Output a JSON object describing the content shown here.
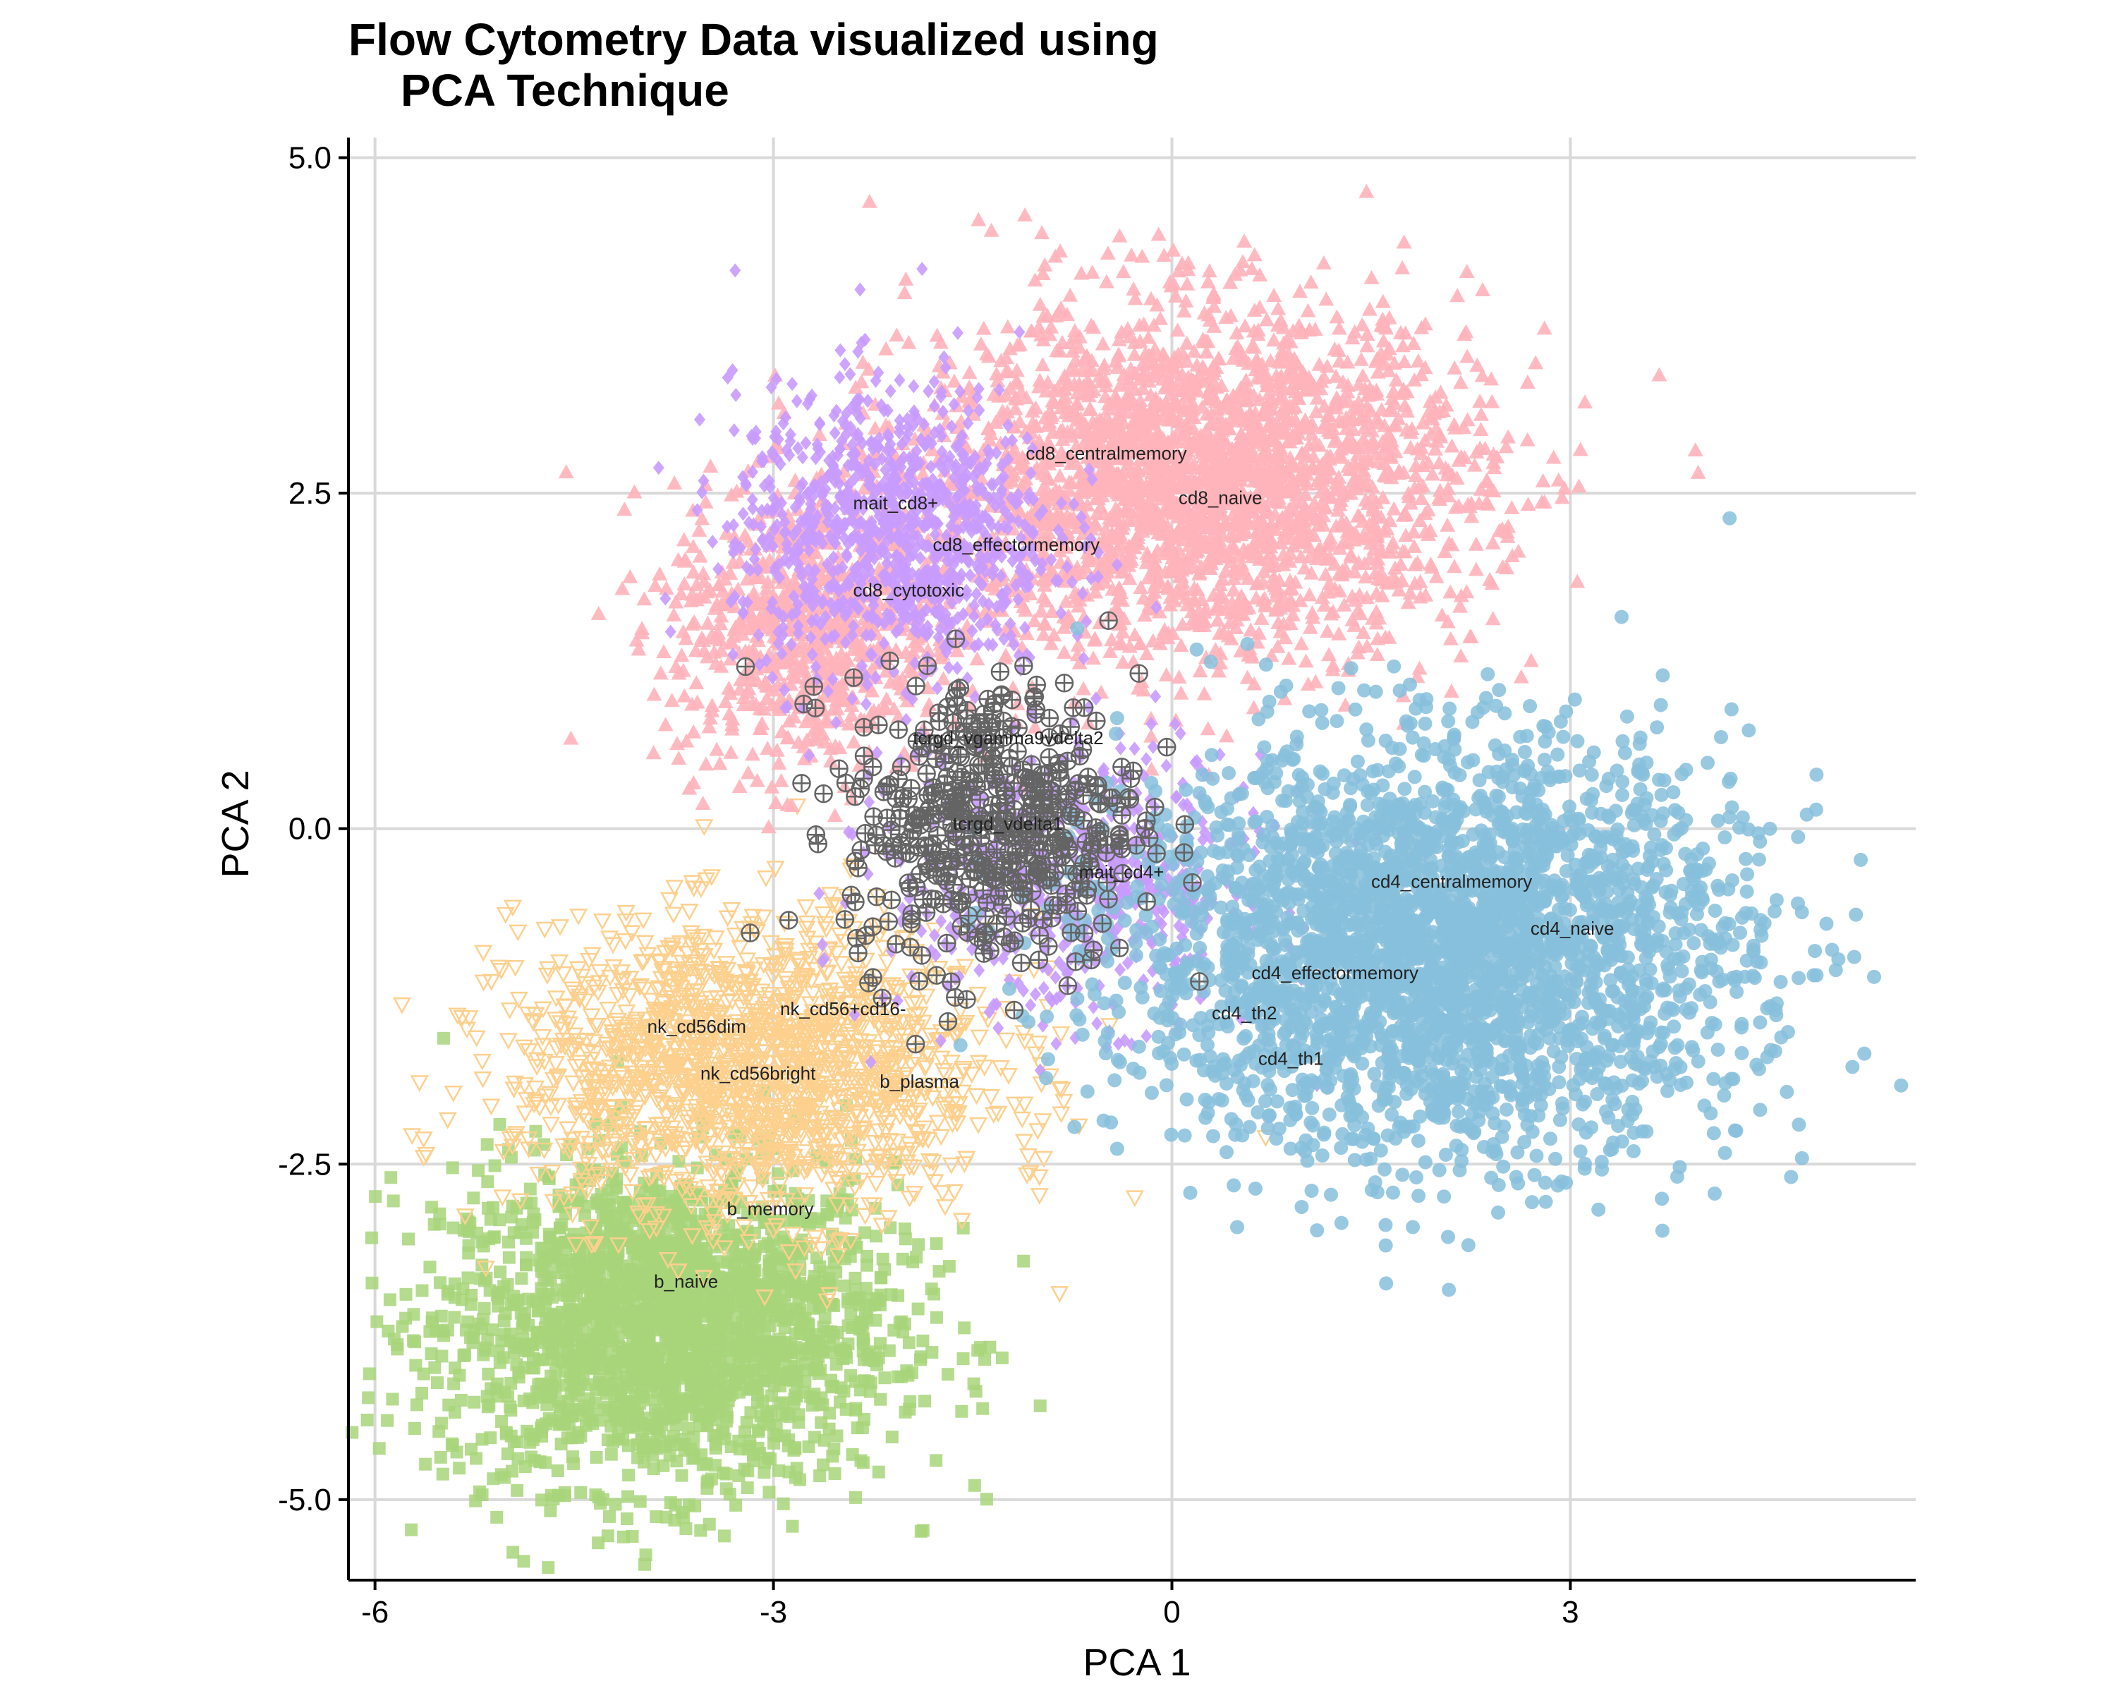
{
  "chart_data": {
    "type": "scatter",
    "title_line1": "Flow Cytometry Data visualized using",
    "title_line2": "PCA Technique",
    "xlabel": "PCA 1",
    "ylabel": "PCA 2",
    "xlim": [
      -6.2,
      5.6
    ],
    "ylim": [
      -5.6,
      5.15
    ],
    "x_ticks": [
      -6,
      -3,
      0,
      3
    ],
    "x_tick_labels": [
      "-6",
      "-3",
      "0",
      "3"
    ],
    "y_ticks": [
      5.0,
      2.5,
      0.0,
      -2.5,
      -5.0
    ],
    "y_tick_labels": [
      "5.0",
      "2.5",
      "0.0",
      "-2.5",
      "-5.0"
    ],
    "grid": true,
    "series": [
      {
        "group": "b",
        "color": "#a8d57a",
        "marker": "square",
        "center": [
          -3.8,
          -3.7
        ],
        "spread": [
          0.85,
          0.6
        ],
        "n": 2200
      },
      {
        "group": "nk",
        "color": "#fdd08e",
        "marker": "triangle-down-open",
        "center": [
          -3.15,
          -1.8
        ],
        "spread": [
          0.9,
          0.55
        ],
        "n": 1600
      },
      {
        "group": "cd8",
        "color": "#ffb3ba",
        "marker": "triangle-up",
        "center": [
          0.2,
          2.6
        ],
        "spread": [
          1.05,
          0.65
        ],
        "n": 2600
      },
      {
        "group": "cd8-left",
        "color": "#ffb3ba",
        "marker": "triangle-up",
        "center": [
          -2.7,
          1.5
        ],
        "spread": [
          0.55,
          0.55
        ],
        "n": 800
      },
      {
        "group": "mait",
        "color": "#c89bff",
        "marker": "diamond",
        "center": [
          -2.1,
          2.2
        ],
        "spread": [
          0.6,
          0.55
        ],
        "n": 1000
      },
      {
        "group": "mait-cd4",
        "color": "#c89bff",
        "marker": "diamond",
        "center": [
          -0.7,
          -0.4
        ],
        "spread": [
          0.7,
          0.5
        ],
        "n": 600
      },
      {
        "group": "cd4",
        "color": "#87bfdc",
        "marker": "circle",
        "center": [
          2.0,
          -0.9
        ],
        "spread": [
          1.15,
          0.75
        ],
        "n": 3200
      },
      {
        "group": "tcrgd",
        "color": "#646464",
        "marker": "circle-cross-open",
        "center": [
          -1.35,
          0.05
        ],
        "spread": [
          0.55,
          0.55
        ],
        "n": 500
      }
    ],
    "annotations": [
      {
        "text": "cd8_centralmemory",
        "x": -1.1,
        "y": 2.75
      },
      {
        "text": "cd8_naive",
        "x": 0.05,
        "y": 2.42
      },
      {
        "text": "mait_cd8+",
        "x": -2.4,
        "y": 2.38
      },
      {
        "text": "cd8_effectormemory",
        "x": -1.8,
        "y": 2.07
      },
      {
        "text": "cd8_cytotoxic",
        "x": -2.4,
        "y": 1.73
      },
      {
        "text": "tcrgd_vgamma9vdelta2",
        "x": -1.95,
        "y": 0.63
      },
      {
        "text": "tcrgd_vdelta1",
        "x": -1.65,
        "y": -0.01
      },
      {
        "text": "mait_cd4+",
        "x": -0.7,
        "y": -0.37
      },
      {
        "text": "cd4_centralmemory",
        "x": 1.5,
        "y": -0.44
      },
      {
        "text": "cd4_naive",
        "x": 2.7,
        "y": -0.79
      },
      {
        "text": "cd4_effectormemory",
        "x": 0.6,
        "y": -1.12
      },
      {
        "text": "cd4_th2",
        "x": 0.3,
        "y": -1.42
      },
      {
        "text": "cd4_th1",
        "x": 0.65,
        "y": -1.76
      },
      {
        "text": "nk_cd56+cd16-",
        "x": -2.95,
        "y": -1.39
      },
      {
        "text": "nk_cd56dim",
        "x": -3.95,
        "y": -1.52
      },
      {
        "text": "nk_cd56bright",
        "x": -3.55,
        "y": -1.87
      },
      {
        "text": "b_plasma",
        "x": -2.2,
        "y": -1.93
      },
      {
        "text": "b_memory",
        "x": -3.35,
        "y": -2.88
      },
      {
        "text": "b_naive",
        "x": -3.9,
        "y": -3.42
      }
    ]
  }
}
